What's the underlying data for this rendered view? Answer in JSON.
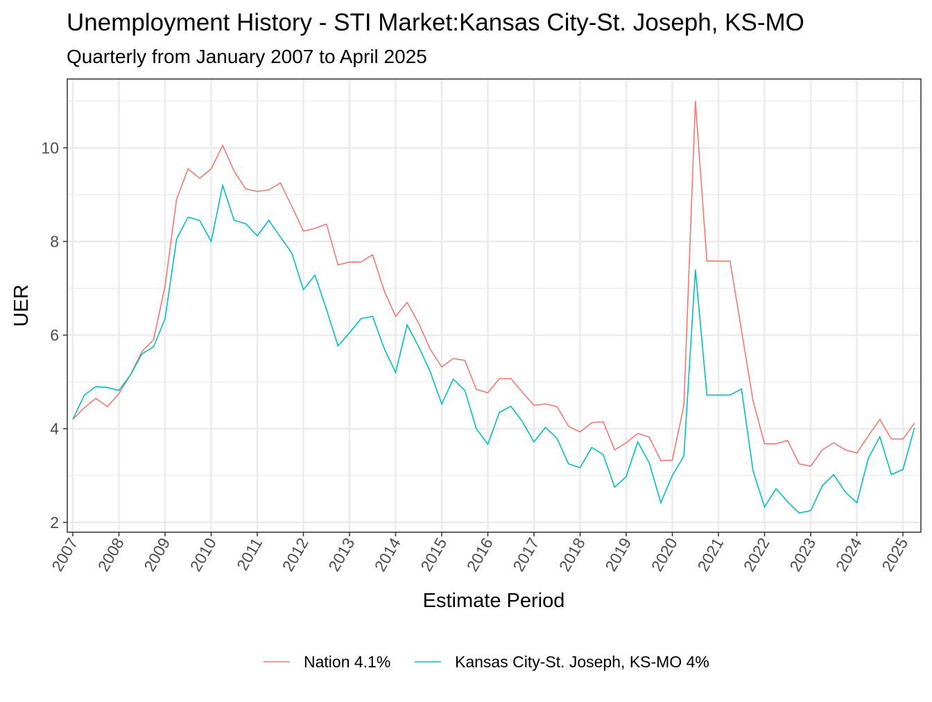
{
  "chart_data": {
    "type": "line",
    "title": "Unemployment History - STI Market:Kansas City-St. Joseph, KS-MO",
    "subtitle": "Quarterly from January 2007 to April 2025",
    "xlabel": "Estimate Period",
    "ylabel": "UER",
    "xlim": [
      2006.88,
      2025.39
    ],
    "ylim": [
      1.79,
      11.47
    ],
    "x_ticks": [
      "2007",
      "2008",
      "2009",
      "2010",
      "2011",
      "2012",
      "2013",
      "2014",
      "2015",
      "2016",
      "2017",
      "2018",
      "2019",
      "2020",
      "2021",
      "2022",
      "2023",
      "2024",
      "2025"
    ],
    "y_ticks": [
      2,
      4,
      6,
      8,
      10
    ],
    "grid": true,
    "legend_position": "bottom",
    "x_start": "2007 Q1",
    "x_step": "quarter",
    "series": [
      {
        "name": "Nation 4.1%",
        "color": "#F8766D",
        "values": [
          4.2,
          4.45,
          4.65,
          4.47,
          4.75,
          5.15,
          5.65,
          5.9,
          7.05,
          8.9,
          9.55,
          9.35,
          9.55,
          10.05,
          9.5,
          9.12,
          9.07,
          9.1,
          9.25,
          8.75,
          8.22,
          8.28,
          8.37,
          7.5,
          7.56,
          7.56,
          7.72,
          6.95,
          6.4,
          6.7,
          6.25,
          5.7,
          5.32,
          5.5,
          5.46,
          4.84,
          4.77,
          5.07,
          5.07,
          4.78,
          4.5,
          4.53,
          4.47,
          4.05,
          3.93,
          4.13,
          4.15,
          3.55,
          3.7,
          3.9,
          3.82,
          3.32,
          3.33,
          4.5,
          11.0,
          7.58,
          7.58,
          7.58,
          6.1,
          4.6,
          3.68,
          3.68,
          3.75,
          3.25,
          3.2,
          3.55,
          3.7,
          3.55,
          3.48,
          3.85,
          4.2,
          3.78,
          3.78,
          4.12
        ]
      },
      {
        "name": "Kansas City-St. Joseph, KS-MO 4%",
        "color": "#00BFC4",
        "values": [
          4.2,
          4.72,
          4.9,
          4.88,
          4.82,
          5.15,
          5.6,
          5.75,
          6.35,
          8.05,
          8.52,
          8.45,
          8.0,
          9.2,
          8.45,
          8.38,
          8.12,
          8.45,
          8.1,
          7.75,
          6.97,
          7.28,
          6.55,
          5.77,
          6.05,
          6.35,
          6.4,
          5.72,
          5.2,
          6.22,
          5.75,
          5.22,
          4.53,
          5.06,
          4.82,
          4.0,
          3.67,
          4.35,
          4.48,
          4.15,
          3.72,
          4.03,
          3.79,
          3.25,
          3.17,
          3.6,
          3.45,
          2.75,
          2.98,
          3.72,
          3.27,
          2.42,
          3.0,
          3.42,
          7.4,
          4.72,
          4.72,
          4.72,
          4.85,
          3.1,
          2.33,
          2.72,
          2.44,
          2.2,
          2.25,
          2.78,
          3.02,
          2.65,
          2.42,
          3.37,
          3.83,
          3.02,
          3.13,
          4.02
        ]
      }
    ]
  }
}
